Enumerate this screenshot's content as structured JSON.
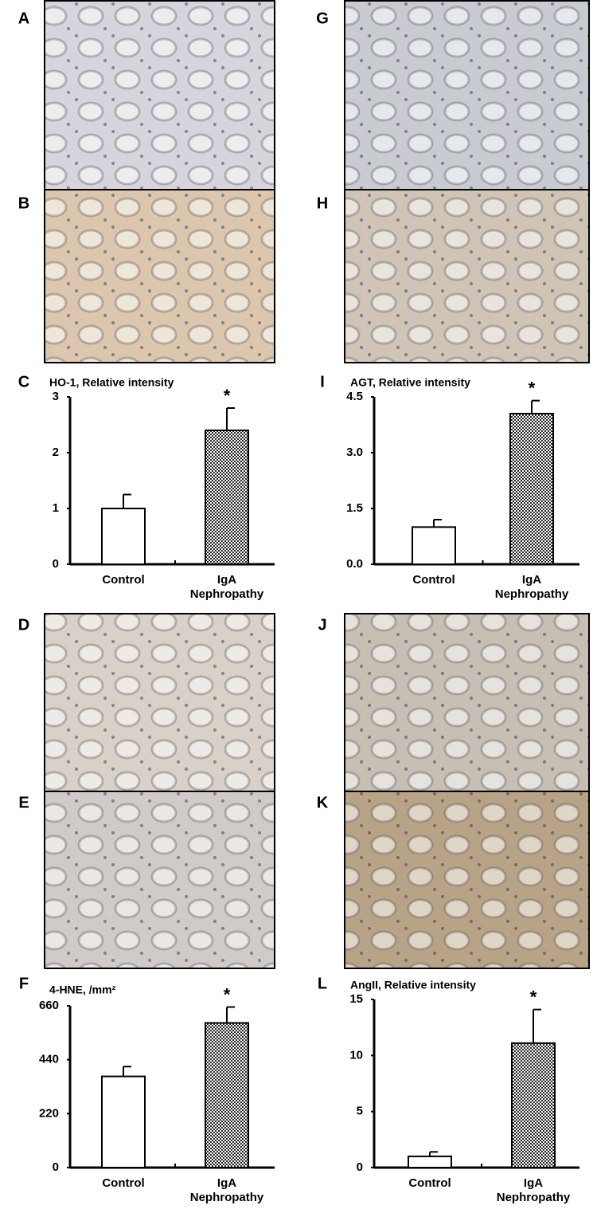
{
  "panel_labels": [
    "A",
    "B",
    "C",
    "G",
    "H",
    "I",
    "D",
    "E",
    "F",
    "J",
    "K",
    "L"
  ],
  "chart_data": [
    {
      "type": "bar",
      "title": "HO-1, Relative intensity",
      "categories": [
        "Control",
        "IgA Nephropathy"
      ],
      "values": [
        1.0,
        2.4
      ],
      "errors": [
        0.25,
        0.4
      ],
      "bar_styles": [
        "open",
        "hatched"
      ],
      "ylim": [
        0,
        3
      ],
      "yticks": [
        0,
        1,
        2,
        3
      ],
      "annotation": {
        "text": "*",
        "category": "IgA Nephropathy"
      }
    },
    {
      "type": "bar",
      "title": "AGT, Relative intensity",
      "categories": [
        "Control",
        "IgA Nephropathy"
      ],
      "values": [
        1.0,
        4.05
      ],
      "errors": [
        0.2,
        0.35
      ],
      "bar_styles": [
        "open",
        "hatched"
      ],
      "ylim": [
        0,
        4.5
      ],
      "yticks": [
        {
          "value": 0,
          "label": "0.0"
        },
        1.5,
        {
          "value": 3,
          "label": "3.0"
        },
        4.5
      ],
      "annotation": {
        "text": "*",
        "category": "IgA Nephropathy"
      }
    },
    {
      "type": "bar",
      "title": "4-HNE, /mm²",
      "categories": [
        "Control",
        "IgA Nephropathy"
      ],
      "values": [
        372,
        590
      ],
      "errors": [
        40,
        65
      ],
      "bar_styles": [
        "open",
        "hatched"
      ],
      "ylim": [
        0,
        660
      ],
      "yticks": [
        0,
        220,
        440,
        660
      ],
      "annotation": {
        "text": "*",
        "category": "IgA Nephropathy"
      }
    },
    {
      "type": "bar",
      "title": "AngII, Relative intensity",
      "categories": [
        "Control",
        "IgA Nephropathy"
      ],
      "values": [
        1.0,
        11.1
      ],
      "errors": [
        0.4,
        3.0
      ],
      "bar_styles": [
        "open",
        "hatched"
      ],
      "ylim": [
        0,
        15
      ],
      "yticks": [
        0,
        5,
        10,
        15
      ],
      "annotation": {
        "text": "*",
        "category": "IgA Nephropathy"
      }
    }
  ]
}
